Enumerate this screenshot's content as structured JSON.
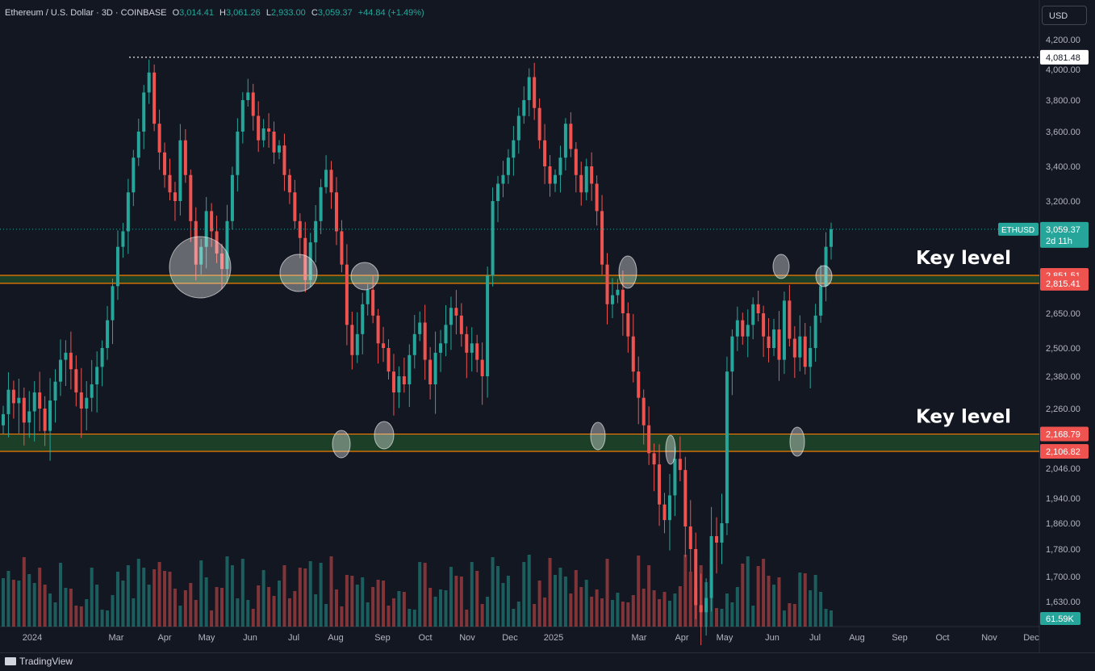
{
  "legend": {
    "symbol": "Ethereum / U.S. Dollar · 3D · COINBASE",
    "o_label": "O",
    "o": "3,014.41",
    "h_label": "H",
    "h": "3,061.26",
    "l_label": "L",
    "l": "2,933.00",
    "c_label": "C",
    "c": "3,059.37",
    "change": "+44.84 (+1.49%)"
  },
  "currency": "USD",
  "brand": "TradingView",
  "colors": {
    "up": "#26a69a",
    "down": "#ef5350",
    "zone_fill": "#1b5e20",
    "zone_border": "#f57c00",
    "bg": "#131722"
  },
  "chart_data": {
    "type": "candlestick",
    "y_ticks": [
      1630,
      1700,
      1780,
      1860,
      1940,
      2046,
      2260,
      2380,
      2500,
      2650,
      3200,
      3400,
      3600,
      3800,
      4000,
      4200
    ],
    "y_tick_labels": [
      "1,630.00",
      "1,700.00",
      "1,780.00",
      "1,860.00",
      "1,940.00",
      "2,046.00",
      "2,260.00",
      "2,380.00",
      "2,500.00",
      "2,650.00",
      "3,200.00",
      "3,400.00",
      "3,600.00",
      "3,800.00",
      "4,000.00",
      "4,200.00"
    ],
    "x_labels": [
      "2024",
      "Mar",
      "Apr",
      "May",
      "Jun",
      "Jul",
      "Aug",
      "Sep",
      "Oct",
      "Nov",
      "Dec",
      "2025",
      "Mar",
      "Apr",
      "May",
      "Jun",
      "Jul",
      "Aug",
      "Sep",
      "Oct",
      "Nov",
      "Dec"
    ],
    "price_labels": [
      {
        "text": "4,081.48",
        "value": 4081.48,
        "kind": "high"
      },
      {
        "text": "2,851.51",
        "value": 2851.51,
        "kind": "zone"
      },
      {
        "text": "2,815.41",
        "value": 2815.41,
        "kind": "zone"
      },
      {
        "text": "2,168.79",
        "value": 2168.79,
        "kind": "zone"
      },
      {
        "text": "2,106.82",
        "value": 2106.82,
        "kind": "zone"
      }
    ],
    "current": {
      "symbol": "ETHUSD",
      "price": "3,059.37",
      "countdown": "2d 11h",
      "value": 3059.37
    },
    "volume_label": "61.59K",
    "zones": [
      {
        "top": 2851.51,
        "bottom": 2815.41,
        "label": "Key level"
      },
      {
        "top": 2168.79,
        "bottom": 2106.82,
        "label": "Key level"
      }
    ],
    "closes": [
      2240,
      2330,
      2280,
      2300,
      2210,
      2250,
      2320,
      2260,
      2180,
      2290,
      2360,
      2450,
      2480,
      2410,
      2320,
      2260,
      2300,
      2350,
      2420,
      2500,
      2620,
      2800,
      2980,
      3050,
      3250,
      3450,
      3600,
      3850,
      3980,
      3650,
      3480,
      3350,
      3250,
      3200,
      3550,
      3350,
      3100,
      2900,
      2980,
      3150,
      3050,
      2950,
      2880,
      3100,
      3350,
      3600,
      3800,
      3850,
      3700,
      3550,
      3620,
      3600,
      3480,
      3520,
      3350,
      3250,
      3100,
      3020,
      2830,
      3000,
      3100,
      3280,
      3380,
      3250,
      3050,
      2900,
      2600,
      2470,
      2560,
      2700,
      2780,
      2640,
      2520,
      2500,
      2400,
      2320,
      2380,
      2350,
      2470,
      2560,
      2610,
      2450,
      2350,
      2480,
      2520,
      2600,
      2680,
      2640,
      2560,
      2480,
      2520,
      2450,
      2380,
      2850,
      3200,
      3300,
      3350,
      3450,
      3550,
      3700,
      3800,
      3950,
      3750,
      3550,
      3400,
      3300,
      3350,
      3450,
      3650,
      3500,
      3350,
      3250,
      3400,
      3300,
      3150,
      2900,
      2700,
      2750,
      2780,
      2650,
      2550,
      2400,
      2300,
      2200,
      2100,
      2060,
      1920,
      1870,
      1950,
      2080,
      2040,
      1850,
      1780,
      1620,
      1600,
      1640,
      1820,
      1800,
      1860,
      2400,
      2550,
      2620,
      2550,
      2600,
      2700,
      2650,
      2550,
      2500,
      2580,
      2450,
      2720,
      2540,
      2460,
      2550,
      2420,
      2500,
      2640,
      2800,
      2980,
      3059
    ]
  }
}
